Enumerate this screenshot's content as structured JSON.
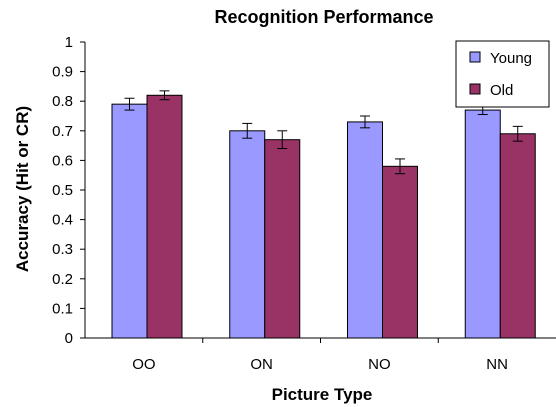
{
  "colors": {
    "young": "#9999ff",
    "old": "#993366",
    "axis": "#000000",
    "bar_stroke": "#000000"
  },
  "chart_data": {
    "type": "bar",
    "title": "Recognition Performance",
    "xlabel": "Picture Type",
    "ylabel": "Accuracy (Hit or CR)",
    "categories": [
      "OO",
      "ON",
      "NO",
      "NN"
    ],
    "ylim": [
      0,
      1
    ],
    "yticks": [
      0,
      0.1,
      0.2,
      0.3,
      0.4,
      0.5,
      0.6,
      0.7,
      0.8,
      0.9,
      1
    ],
    "ytick_labels": [
      "0",
      "0.1",
      "0.2",
      "0.3",
      "0.4",
      "0.5",
      "0.6",
      "0.7",
      "0.8",
      "0.9",
      "1"
    ],
    "grid": false,
    "legend_position": "top-right",
    "series": [
      {
        "name": "Young",
        "values": [
          0.79,
          0.7,
          0.73,
          0.77
        ],
        "errors": [
          0.02,
          0.025,
          0.02,
          0.015
        ]
      },
      {
        "name": "Old",
        "values": [
          0.82,
          0.67,
          0.58,
          0.69
        ],
        "errors": [
          0.015,
          0.03,
          0.025,
          0.025
        ]
      }
    ]
  }
}
